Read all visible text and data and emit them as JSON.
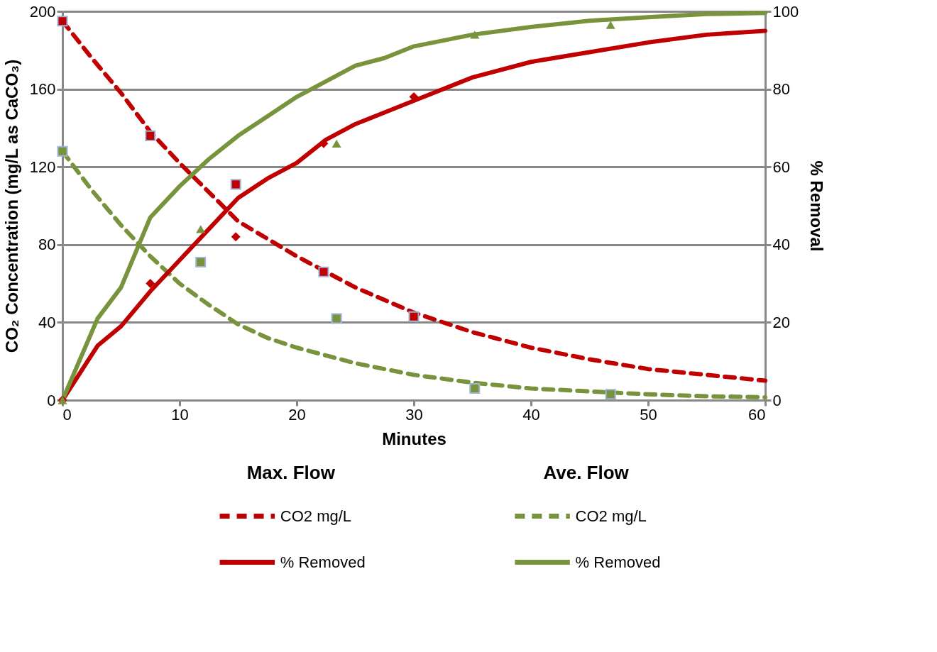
{
  "chart_data": {
    "type": "line",
    "xlabel": "Minutes",
    "ylabel": "CO₂ Concentration (mg/L as CaCO₃)",
    "y2label": "% Removal",
    "legend_title": [
      "Max. Flow",
      "Ave. Flow"
    ],
    "xlim": [
      0,
      60
    ],
    "xticks": [
      0,
      10,
      20,
      30,
      40,
      50,
      60
    ],
    "ylim": [
      0,
      200
    ],
    "yticks": [
      0,
      40,
      80,
      120,
      160,
      200
    ],
    "y2lim": [
      0,
      100
    ],
    "y2ticks": [
      0,
      20,
      40,
      60,
      80,
      100
    ],
    "grid": "y",
    "legend": "bottom",
    "series": [
      {
        "name": "CO2 mg/L",
        "color": "#c00000",
        "type": "line",
        "line_style": "dashed",
        "x": [
          0,
          2.5,
          5,
          7.5,
          10,
          12.5,
          15,
          17.5,
          20,
          25,
          30,
          35,
          40,
          45,
          50,
          55,
          60
        ],
        "values": [
          195,
          176,
          158,
          138,
          122,
          107,
          92,
          83,
          74,
          58,
          45,
          35,
          27,
          21,
          16,
          13,
          10
        ]
      },
      {
        "name": "% Removed",
        "color": "#c00000",
        "type": "line",
        "line_style": "solid",
        "axis": "y2",
        "x": [
          0,
          3,
          5,
          7.5,
          10,
          12.5,
          15,
          17.5,
          20,
          22.5,
          25,
          27.5,
          30,
          35,
          40,
          45,
          50,
          55,
          60
        ],
        "values": [
          0,
          14,
          19,
          28,
          36,
          44,
          52,
          57,
          61,
          67,
          71,
          74,
          77,
          83,
          87,
          89.5,
          92,
          94,
          95
        ]
      },
      {
        "name": "CO2 mg/L",
        "color": "#77933c",
        "type": "line",
        "line_style": "dashed",
        "x": [
          0,
          2.5,
          5,
          7.5,
          10,
          12.5,
          15,
          17.5,
          20,
          25,
          30,
          35,
          40,
          45,
          50,
          55,
          60
        ],
        "values": [
          128,
          108,
          90,
          74,
          60,
          49,
          39,
          32,
          27,
          19,
          13,
          9,
          6,
          4.5,
          3,
          2,
          1.5
        ]
      },
      {
        "name": "% Removed",
        "color": "#77933c",
        "type": "line",
        "line_style": "solid",
        "axis": "y2",
        "x": [
          0,
          3,
          5,
          7.5,
          10,
          12.5,
          15,
          17.5,
          20,
          22.5,
          25,
          27.5,
          30,
          35,
          40,
          45,
          50,
          55,
          60
        ],
        "values": [
          0,
          21,
          29,
          47,
          55,
          62,
          68,
          73,
          78,
          82,
          86,
          88,
          91,
          94,
          96,
          97.6,
          98.5,
          99.3,
          99.6
        ]
      },
      {
        "color": "#c00000",
        "type": "scatter",
        "marker": "square",
        "x": [
          0,
          7.5,
          14.8,
          22.3,
          30
        ],
        "values": [
          195,
          136,
          111,
          66,
          43
        ]
      },
      {
        "color": "#c00000",
        "type": "scatter",
        "marker": "diamond",
        "axis": "y2",
        "x": [
          0,
          7.5,
          14.8,
          22.3,
          30
        ],
        "values": [
          0,
          30,
          42,
          66,
          78
        ]
      },
      {
        "color": "#77933c",
        "type": "scatter",
        "marker": "square",
        "x": [
          0,
          11.8,
          23.4,
          35.2,
          46.8
        ],
        "values": [
          128,
          71,
          42,
          6,
          3
        ]
      },
      {
        "color": "#77933c",
        "type": "scatter",
        "marker": "triangle",
        "axis": "y2",
        "x": [
          0,
          11.8,
          23.4,
          35.2,
          46.8
        ],
        "values": [
          0,
          44,
          66,
          94,
          96.5
        ]
      }
    ]
  }
}
